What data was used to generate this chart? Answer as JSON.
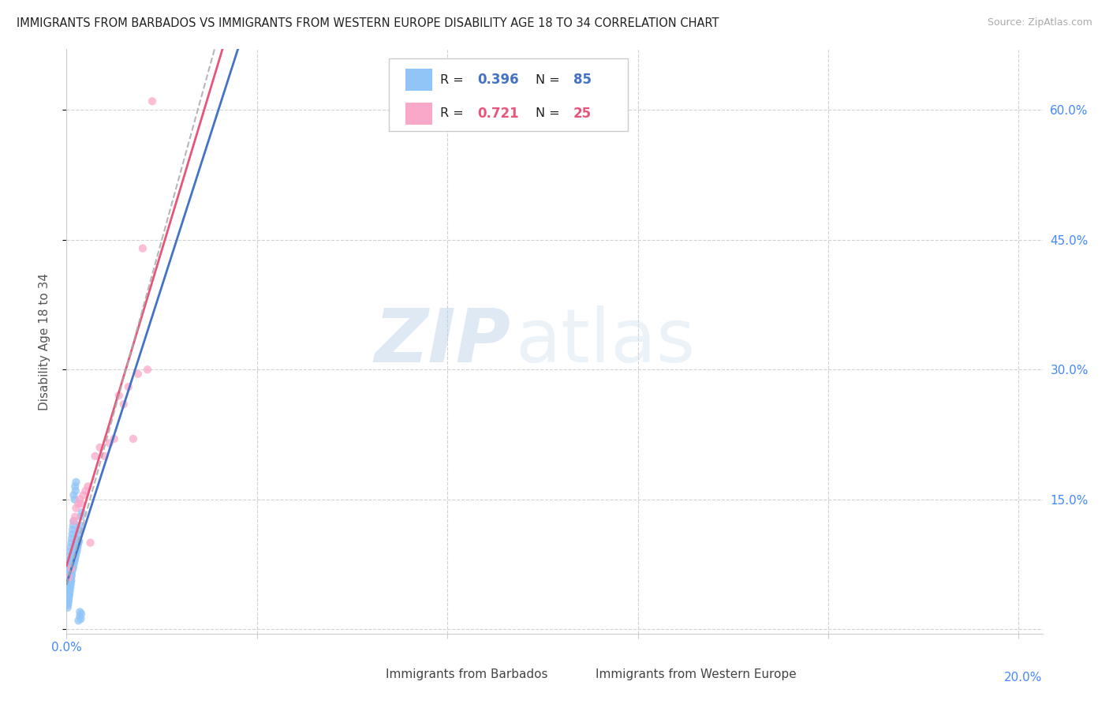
{
  "title": "IMMIGRANTS FROM BARBADOS VS IMMIGRANTS FROM WESTERN EUROPE DISABILITY AGE 18 TO 34 CORRELATION CHART",
  "source": "Source: ZipAtlas.com",
  "ylabel": "Disability Age 18 to 34",
  "xlim": [
    0.0,
    0.205
  ],
  "ylim": [
    -0.005,
    0.67
  ],
  "R_barbados": 0.396,
  "N_barbados": 85,
  "R_europe": 0.721,
  "N_europe": 25,
  "color_barbados": "#92C5F7",
  "color_europe": "#F9A8C9",
  "color_trend_barbados": "#4472C4",
  "color_trend_europe": "#E8557A",
  "color_dashed": "#AAAAAA",
  "legend_label_barbados": "Immigrants from Barbados",
  "legend_label_europe": "Immigrants from Western Europe",
  "watermark_zip": "ZIP",
  "watermark_atlas": "atlas",
  "barbados_x": [
    0.0002,
    0.0003,
    0.0004,
    0.0005,
    0.0006,
    0.0007,
    0.0008,
    0.0009,
    0.001,
    0.0011,
    0.0012,
    0.0013,
    0.0014,
    0.0015,
    0.0016,
    0.0017,
    0.0018,
    0.0019,
    0.002,
    0.0021,
    0.0022,
    0.0023,
    0.0024,
    0.0025,
    0.0026,
    0.0005,
    0.0007,
    0.0009,
    0.0011,
    0.0013,
    0.0003,
    0.0004,
    0.0006,
    0.0008,
    0.001,
    0.0012,
    0.0014,
    0.0002,
    0.0003,
    0.0004,
    0.0005,
    0.0006,
    0.0007,
    0.0008,
    0.0009,
    0.001,
    0.0002,
    0.0003,
    0.0004,
    0.0005,
    0.0006,
    0.0007,
    0.0008,
    0.0009,
    0.001,
    0.0011,
    0.0012,
    0.0013,
    0.0014,
    0.0015,
    0.0002,
    0.0004,
    0.0006,
    0.0008,
    0.001,
    0.0012,
    0.0016,
    0.0018,
    0.002,
    0.0022,
    0.0024,
    0.0026,
    0.0028,
    0.003,
    0.0032,
    0.0017,
    0.0019,
    0.002,
    0.0015,
    0.0018,
    0.0025,
    0.0028,
    0.003,
    0.0028,
    0.0031
  ],
  "barbados_y": [
    0.038,
    0.045,
    0.042,
    0.048,
    0.052,
    0.055,
    0.06,
    0.058,
    0.065,
    0.062,
    0.068,
    0.07,
    0.072,
    0.075,
    0.078,
    0.08,
    0.082,
    0.085,
    0.088,
    0.09,
    0.092,
    0.095,
    0.098,
    0.1,
    0.102,
    0.04,
    0.05,
    0.06,
    0.07,
    0.08,
    0.03,
    0.035,
    0.045,
    0.055,
    0.065,
    0.075,
    0.085,
    0.025,
    0.028,
    0.032,
    0.036,
    0.04,
    0.044,
    0.048,
    0.052,
    0.056,
    0.06,
    0.065,
    0.07,
    0.075,
    0.08,
    0.085,
    0.09,
    0.095,
    0.1,
    0.105,
    0.11,
    0.115,
    0.12,
    0.125,
    0.05,
    0.055,
    0.06,
    0.07,
    0.075,
    0.08,
    0.09,
    0.095,
    0.1,
    0.105,
    0.11,
    0.115,
    0.12,
    0.13,
    0.135,
    0.15,
    0.16,
    0.17,
    0.155,
    0.165,
    0.01,
    0.015,
    0.012,
    0.02,
    0.018
  ],
  "europe_x": [
    0.0005,
    0.001,
    0.0015,
    0.0018,
    0.002,
    0.0025,
    0.0028,
    0.003,
    0.0035,
    0.004,
    0.0045,
    0.005,
    0.006,
    0.007,
    0.008,
    0.009,
    0.01,
    0.011,
    0.012,
    0.013,
    0.014,
    0.015,
    0.016,
    0.017,
    0.018
  ],
  "europe_y": [
    0.06,
    0.07,
    0.125,
    0.13,
    0.14,
    0.145,
    0.15,
    0.145,
    0.155,
    0.16,
    0.165,
    0.1,
    0.2,
    0.21,
    0.2,
    0.215,
    0.22,
    0.27,
    0.26,
    0.28,
    0.22,
    0.295,
    0.44,
    0.3,
    0.61
  ]
}
